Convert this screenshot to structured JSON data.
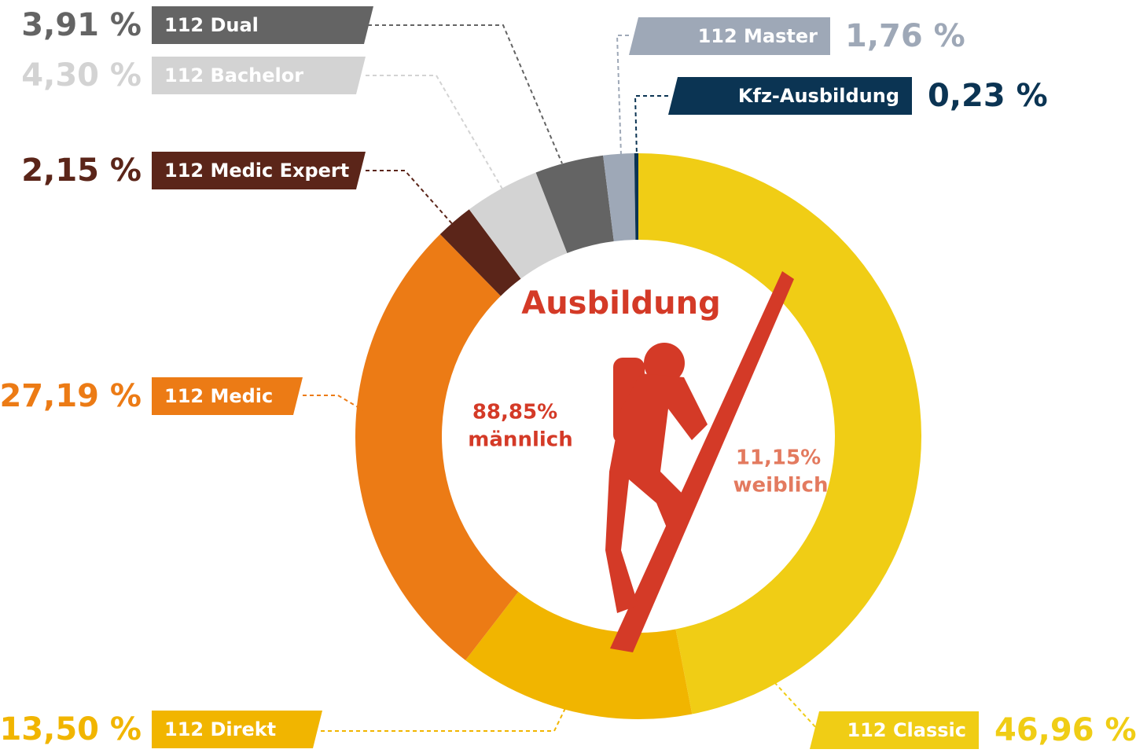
{
  "chart_data": {
    "type": "pie",
    "donut": true,
    "title": "Ausbildung",
    "categories": [
      "112 Classic",
      "112 Direkt",
      "112 Medic",
      "112 Medic Expert",
      "112 Bachelor",
      "112 Dual",
      "112 Master",
      "Kfz-Ausbildung"
    ],
    "values": [
      46.96,
      13.5,
      27.19,
      2.15,
      4.3,
      3.91,
      1.76,
      0.23
    ],
    "value_labels": [
      "46,96 %",
      "13,50 %",
      "27,19 %",
      "2,15 %",
      "4,30 %",
      "3,91 %",
      "1,76 %",
      "0,23 %"
    ],
    "colors": [
      "#f0cd15",
      "#f1b500",
      "#ec7b15",
      "#5b2519",
      "#d3d3d3",
      "#646464",
      "#9ea8b7",
      "#0b3453"
    ],
    "annotations": [
      "88,85%",
      "männlich",
      "11,15%",
      "weiblich"
    ]
  }
}
